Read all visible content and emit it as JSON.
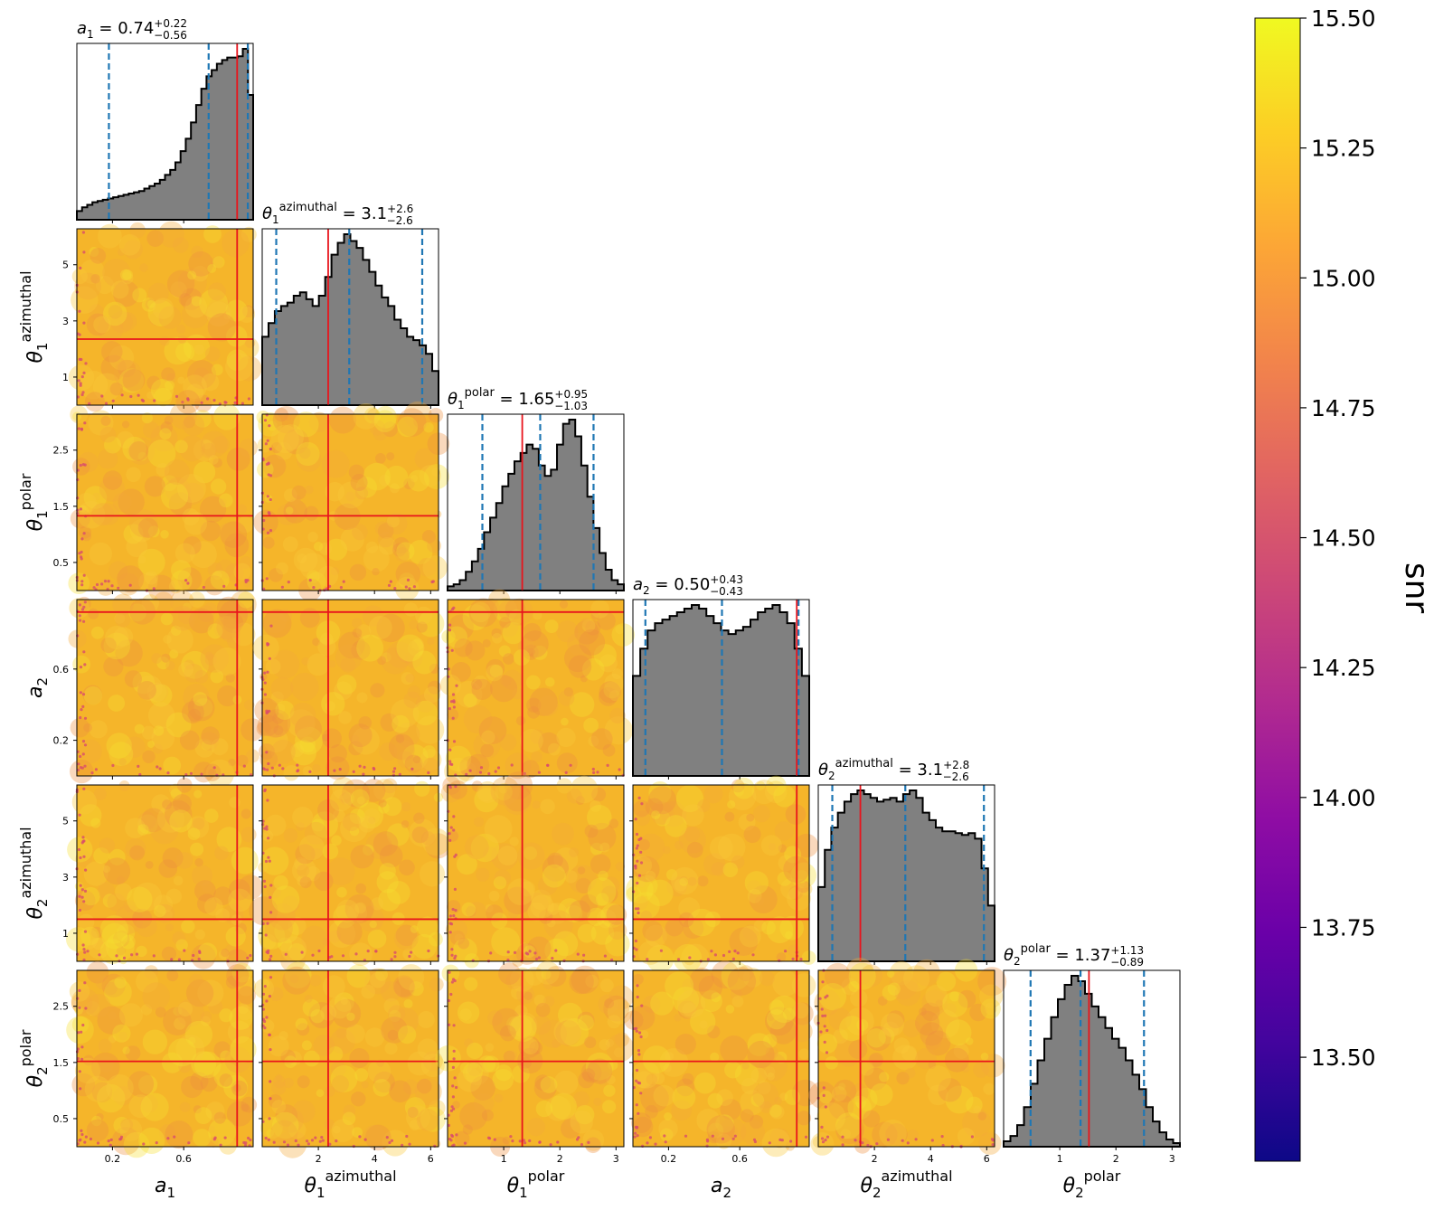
{
  "chart_data": {
    "type": "corner",
    "parameters": [
      {
        "key": "a1",
        "sym": "a",
        "sub": "1",
        "sup": "",
        "range": [
          0.0,
          0.99
        ],
        "ticks": [
          0.2,
          0.6
        ],
        "tick_labels": [
          "0.2",
          "0.6"
        ],
        "median": "0.74",
        "plus": "+0.22",
        "minus": "−0.56",
        "quantiles": [
          0.18,
          0.74,
          0.96
        ],
        "truth": 0.9
      },
      {
        "key": "theta1_az",
        "sym": "θ",
        "sub": "1",
        "sup": "azimuthal",
        "range": [
          0.0,
          6.28
        ],
        "ticks": [
          2,
          4,
          6
        ],
        "tick_labels": [
          "2",
          "4",
          "6"
        ],
        "left_ticks": [
          1,
          3,
          5
        ],
        "left_tick_labels": [
          "1",
          "3",
          "5"
        ],
        "median": "3.1",
        "plus": "+2.6",
        "minus": "−2.6",
        "quantiles": [
          0.5,
          3.1,
          5.7
        ],
        "truth": 2.35
      },
      {
        "key": "theta1_pol",
        "sym": "θ",
        "sub": "1",
        "sup": "polar",
        "range": [
          0.0,
          3.14
        ],
        "ticks": [
          1,
          2,
          3
        ],
        "tick_labels": [
          "1",
          "2",
          "3"
        ],
        "left_ticks": [
          0.5,
          1.5,
          2.5
        ],
        "left_tick_labels": [
          "0.5",
          "1.5",
          "2.5"
        ],
        "median": "1.65",
        "plus": "+0.95",
        "minus": "−1.03",
        "quantiles": [
          0.62,
          1.65,
          2.6
        ],
        "truth": 1.33
      },
      {
        "key": "a2",
        "sym": "a",
        "sub": "2",
        "sup": "",
        "range": [
          0.0,
          0.99
        ],
        "ticks": [
          0.2,
          0.6
        ],
        "tick_labels": [
          "0.2",
          "0.6"
        ],
        "left_ticks": [
          0.2,
          0.6
        ],
        "left_tick_labels": [
          "0.2",
          "0.6"
        ],
        "median": "0.50",
        "plus": "+0.43",
        "minus": "−0.43",
        "quantiles": [
          0.07,
          0.5,
          0.93
        ],
        "truth": 0.92
      },
      {
        "key": "theta2_az",
        "sym": "θ",
        "sub": "2",
        "sup": "azimuthal",
        "range": [
          0.0,
          6.28
        ],
        "ticks": [
          2,
          4,
          6
        ],
        "tick_labels": [
          "2",
          "4",
          "6"
        ],
        "left_ticks": [
          1,
          3,
          5
        ],
        "left_tick_labels": [
          "1",
          "3",
          "5"
        ],
        "median": "3.1",
        "plus": "+2.8",
        "minus": "−2.6",
        "quantiles": [
          0.5,
          3.1,
          5.9
        ],
        "truth": 1.5
      },
      {
        "key": "theta2_pol",
        "sym": "θ",
        "sub": "2",
        "sup": "polar",
        "range": [
          0.0,
          3.14
        ],
        "ticks": [
          1,
          2,
          3
        ],
        "tick_labels": [
          "1",
          "2",
          "3"
        ],
        "left_ticks": [
          0.5,
          1.5,
          2.5
        ],
        "left_tick_labels": [
          "0.5",
          "1.5",
          "2.5"
        ],
        "median": "1.37",
        "plus": "+1.13",
        "minus": "−0.89",
        "quantiles": [
          0.48,
          1.37,
          2.5
        ],
        "truth": 1.52
      }
    ],
    "histograms": [
      [
        7,
        10,
        12,
        14,
        15,
        16,
        17,
        18,
        19,
        20,
        21,
        22,
        23,
        25,
        27,
        29,
        32,
        36,
        40,
        46,
        55,
        65,
        78,
        92,
        105,
        115,
        120,
        125,
        128,
        130,
        130,
        131,
        137,
        100
      ],
      [
        40,
        48,
        55,
        58,
        60,
        64,
        66,
        62,
        58,
        64,
        75,
        88,
        95,
        100,
        96,
        92,
        85,
        78,
        70,
        63,
        58,
        50,
        45,
        40,
        38,
        35,
        30,
        20
      ],
      [
        2,
        3,
        5,
        9,
        14,
        20,
        28,
        35,
        42,
        50,
        56,
        62,
        66,
        70,
        68,
        60,
        55,
        58,
        70,
        80,
        82,
        74,
        60,
        45,
        30,
        18,
        10,
        5,
        3
      ],
      [
        55,
        70,
        80,
        84,
        86,
        88,
        90,
        92,
        94,
        92,
        88,
        84,
        80,
        78,
        80,
        82,
        86,
        90,
        92,
        94,
        90,
        84,
        70,
        55
      ],
      [
        40,
        60,
        72,
        80,
        86,
        90,
        92,
        90,
        88,
        86,
        87,
        88,
        86,
        90,
        92,
        88,
        80,
        76,
        72,
        70,
        70,
        69,
        68,
        69,
        66,
        50,
        30
      ],
      [
        3,
        6,
        12,
        22,
        35,
        48,
        60,
        72,
        82,
        90,
        95,
        92,
        85,
        78,
        72,
        66,
        60,
        55,
        48,
        40,
        32,
        22,
        14,
        8,
        4,
        2
      ]
    ],
    "colorbar": {
      "label": "snr",
      "range": [
        13.3,
        15.5
      ],
      "ticks": [
        13.5,
        13.75,
        14.0,
        14.25,
        14.5,
        14.75,
        15.0,
        15.25,
        15.5
      ],
      "tick_labels": [
        "13.50",
        "13.75",
        "14.00",
        "14.25",
        "14.50",
        "14.75",
        "15.00",
        "15.25",
        "15.50"
      ],
      "colormap": "plasma"
    },
    "colors": {
      "histogram_fill": "#808080",
      "histogram_edge": "#000000",
      "quantile_line": "#1f77b4",
      "truth_line": "#e8141c",
      "scatter_base": "#f5b52a",
      "scatter_high": "#f7e032",
      "scatter_low": "#d94e6a"
    },
    "grid": false
  }
}
